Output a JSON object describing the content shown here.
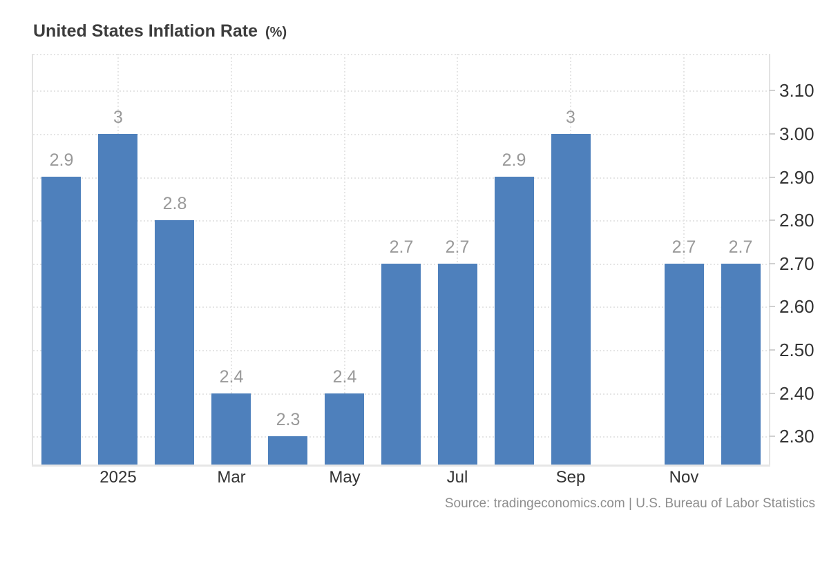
{
  "chart_data": {
    "type": "bar",
    "title": "United States Inflation Rate",
    "unit": "(%)",
    "source": "Source: tradingeconomics.com | U.S. Bureau of Labor Statistics",
    "bar_color": "#4e80bc",
    "value_label_color": "#999999",
    "axis_label_color": "#333333",
    "ylim": [
      2.235,
      3.185
    ],
    "y_ticks": [
      "3.10",
      "3.00",
      "2.90",
      "2.80",
      "2.70",
      "2.60",
      "2.50",
      "2.40",
      "2.30"
    ],
    "grid": true,
    "legend": "none",
    "bars": [
      {
        "value": 2.9,
        "label": "2.9",
        "axis_label": ""
      },
      {
        "value": 3,
        "label": "3",
        "axis_label": "2025"
      },
      {
        "value": 2.8,
        "label": "2.8",
        "axis_label": ""
      },
      {
        "value": 2.4,
        "label": "2.4",
        "axis_label": "Mar"
      },
      {
        "value": 2.3,
        "label": "2.3",
        "axis_label": ""
      },
      {
        "value": 2.4,
        "label": "2.4",
        "axis_label": "May"
      },
      {
        "value": 2.7,
        "label": "2.7",
        "axis_label": ""
      },
      {
        "value": 2.7,
        "label": "2.7",
        "axis_label": "Jul"
      },
      {
        "value": 2.9,
        "label": "2.9",
        "axis_label": ""
      },
      {
        "value": 3,
        "label": "3",
        "axis_label": "Sep"
      },
      {
        "value": null,
        "label": "",
        "axis_label": ""
      },
      {
        "value": 2.7,
        "label": "2.7",
        "axis_label": "Nov"
      },
      {
        "value": 2.7,
        "label": "2.7",
        "axis_label": ""
      }
    ]
  }
}
